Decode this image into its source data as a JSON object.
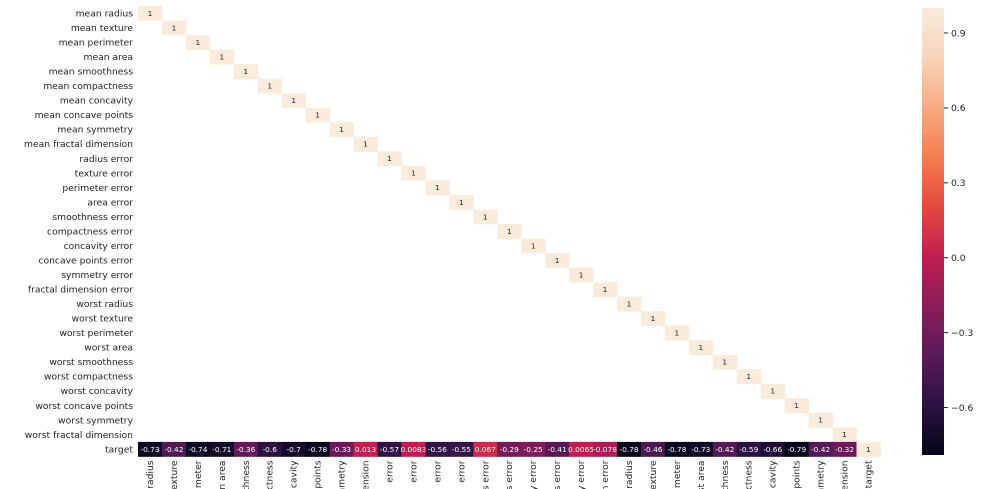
{
  "chart_data": {
    "type": "heatmap",
    "labels": [
      "mean radius",
      "mean texture",
      "mean perimeter",
      "mean area",
      "mean smoothness",
      "mean compactness",
      "mean concavity",
      "mean concave points",
      "mean symmetry",
      "mean fractal dimension",
      "radius error",
      "texture error",
      "perimeter error",
      "area error",
      "smoothness error",
      "compactness error",
      "concavity error",
      "concave points error",
      "symmetry error",
      "fractal dimension error",
      "worst radius",
      "worst texture",
      "worst perimeter",
      "worst area",
      "worst smoothness",
      "worst compactness",
      "worst concavity",
      "worst concave points",
      "worst symmetry",
      "worst fractal dimension",
      "target"
    ],
    "x_tick_labels": [
      "radius",
      "exture",
      "meter",
      "n area",
      "othness",
      "ctness",
      "cavity",
      "points",
      "mmetry",
      "ension",
      "error",
      "error",
      "error",
      "error",
      "s error",
      "s error",
      "y error",
      "s error",
      "y error",
      "n error",
      "radius",
      "exture",
      "meter",
      "st area",
      "othness",
      "ctness",
      "cavity",
      "points",
      "mmetry",
      "ension",
      "target"
    ],
    "diagonal_value": 1,
    "target_row": [
      -0.73,
      -0.42,
      -0.74,
      -0.71,
      -0.36,
      -0.6,
      -0.7,
      -0.78,
      -0.33,
      0.013,
      -0.57,
      0.0083,
      -0.56,
      -0.55,
      0.067,
      -0.29,
      -0.25,
      -0.41,
      0.0065,
      -0.078,
      -0.78,
      -0.46,
      -0.78,
      -0.73,
      -0.42,
      -0.59,
      -0.66,
      -0.79,
      -0.42,
      -0.32,
      1
    ],
    "target_row_labels": [
      "-0.73",
      "-0.42",
      "-0.74",
      "-0.71",
      "-0.36",
      "-0.6",
      "-0.7",
      "-0.78",
      "-0.33",
      "0.013",
      "-0.57",
      "0.0083",
      "-0.56",
      "-0.55",
      "0.067",
      "-0.29",
      "-0.25",
      "-0.41",
      "0.0065",
      "-0.078",
      "-0.78",
      "-0.46",
      "-0.78",
      "-0.73",
      "-0.42",
      "-0.59",
      "-0.66",
      "-0.79",
      "-0.42",
      "-0.32",
      "1"
    ],
    "colorbar": {
      "vmin": -0.79,
      "vmax": 1.0,
      "ticks": [
        0.9,
        0.6,
        0.3,
        0.0,
        -0.3,
        -0.6
      ],
      "tick_labels": [
        "0.9",
        "0.6",
        "0.3",
        "0.0",
        "−0.3",
        "−0.6"
      ],
      "colormap": "rocket",
      "stops": [
        "#03051a",
        "#2b1242",
        "#5a1a58",
        "#8b1d5b",
        "#c11e50",
        "#e8483f",
        "#f57d4f",
        "#f6ab84",
        "#f8d3b8",
        "#faebdd"
      ]
    }
  }
}
